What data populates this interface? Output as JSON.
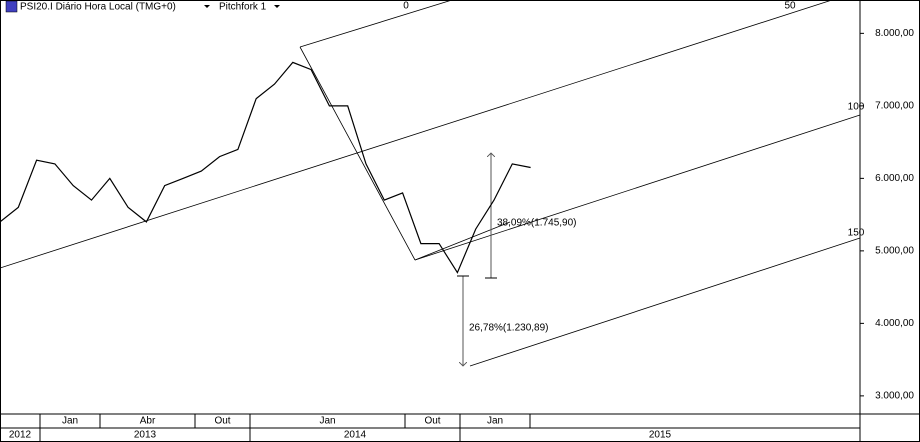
{
  "header": {
    "symbol": "PSI20.I Diário Hora Local (TMG+0)",
    "study": "Pitchfork 1"
  },
  "chart_data": {
    "type": "line",
    "series": [
      {
        "color": "#000000",
        "x": [
          "2012-11",
          "2012-12",
          "2013-01",
          "2013-02",
          "2013-03",
          "2013-04",
          "2013-05",
          "2013-06",
          "2013-07",
          "2013-08",
          "2013-09",
          "2013-10",
          "2013-11",
          "2013-12",
          "2014-01",
          "2014-02",
          "2014-03",
          "2014-04",
          "2014-05",
          "2014-06",
          "2014-07",
          "2014-08",
          "2014-09",
          "2014-10",
          "2014-11",
          "2014-12",
          "2015-01",
          "2015-02",
          "2015-03",
          "2015-04"
        ],
        "values": [
          5400,
          5600,
          6250,
          6200,
          5900,
          5700,
          6000,
          5600,
          5400,
          5900,
          6000,
          6100,
          6300,
          6400,
          7100,
          7300,
          7600,
          7500,
          7000,
          7000,
          6200,
          5700,
          5800,
          5100,
          5100,
          4700,
          5300,
          5700,
          6200,
          6150
        ]
      }
    ],
    "xlim": [
      "2012-11",
      "2016-10"
    ],
    "ylim": [
      2750,
      8460
    ],
    "yticks": [
      {
        "value": 3000,
        "label": "3.000,00"
      },
      {
        "value": 4000,
        "label": "4.000,00"
      },
      {
        "value": 5000,
        "label": "5.000,00"
      },
      {
        "value": 6000,
        "label": "6.000,00"
      },
      {
        "value": 7000,
        "label": "7.000,00"
      },
      {
        "value": 8000,
        "label": "8.000,00"
      }
    ],
    "x_axis_months": [
      "Jan",
      "Abr",
      "Out",
      "Jan",
      "Out",
      "Jan"
    ],
    "x_axis_years": [
      "2012",
      "2013",
      "2014",
      "2015"
    ],
    "pitchfork_labels": [
      0,
      50,
      100,
      150
    ],
    "annotations": [
      "38,09%(1.745,90)",
      "26,78%(1.230,89)"
    ]
  }
}
